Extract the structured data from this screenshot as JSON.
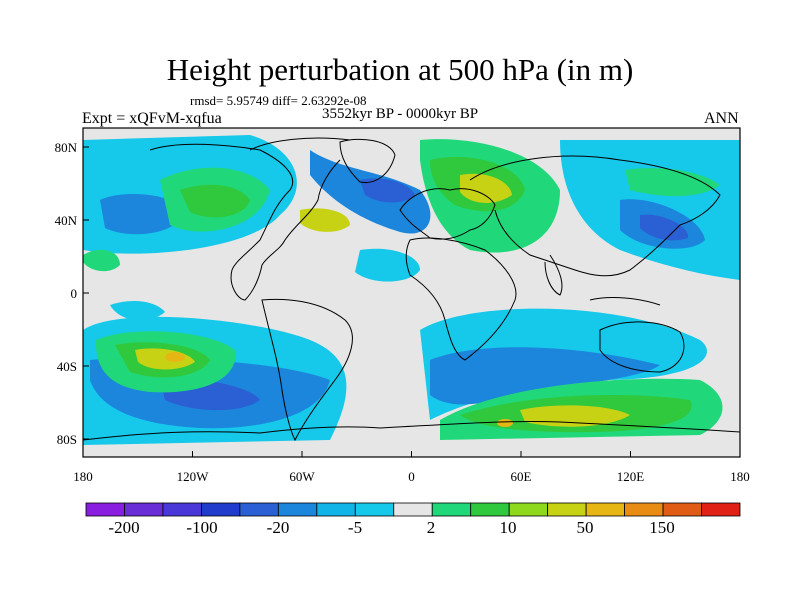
{
  "title": "Height perturbation at 500 hPa (in m)",
  "stats_line": "rmsd= 5.95749 diff= 2.63292e-08",
  "period_line": "3552kyr BP - 0000kyr BP",
  "experiment_label": "Expt = xQFvM-xqfua",
  "season_label": "ANN",
  "map": {
    "projection": "cylindrical equidistant",
    "lon_range": [
      -180,
      180
    ],
    "lat_range": [
      -90,
      90
    ],
    "lon_ticks": [
      "180",
      "120W",
      "60W",
      "0",
      "60E",
      "120E",
      "180"
    ],
    "lat_ticks": [
      "80N",
      "40N",
      "0",
      "40S",
      "80S"
    ]
  },
  "colorbar": {
    "colors": [
      "#8a1ee0",
      "#6a2ed6",
      "#4a38d8",
      "#1f3ccc",
      "#2a60d4",
      "#1c86dc",
      "#10b4e6",
      "#16c8ea",
      "#e6e6e6",
      "#20d87a",
      "#30c83c",
      "#8ed81e",
      "#c8d214",
      "#e6b614",
      "#e88c14",
      "#e05c14",
      "#e02014"
    ],
    "labels": [
      "-200",
      "-100",
      "-20",
      "-5",
      "2",
      "10",
      "50",
      "150"
    ]
  }
}
